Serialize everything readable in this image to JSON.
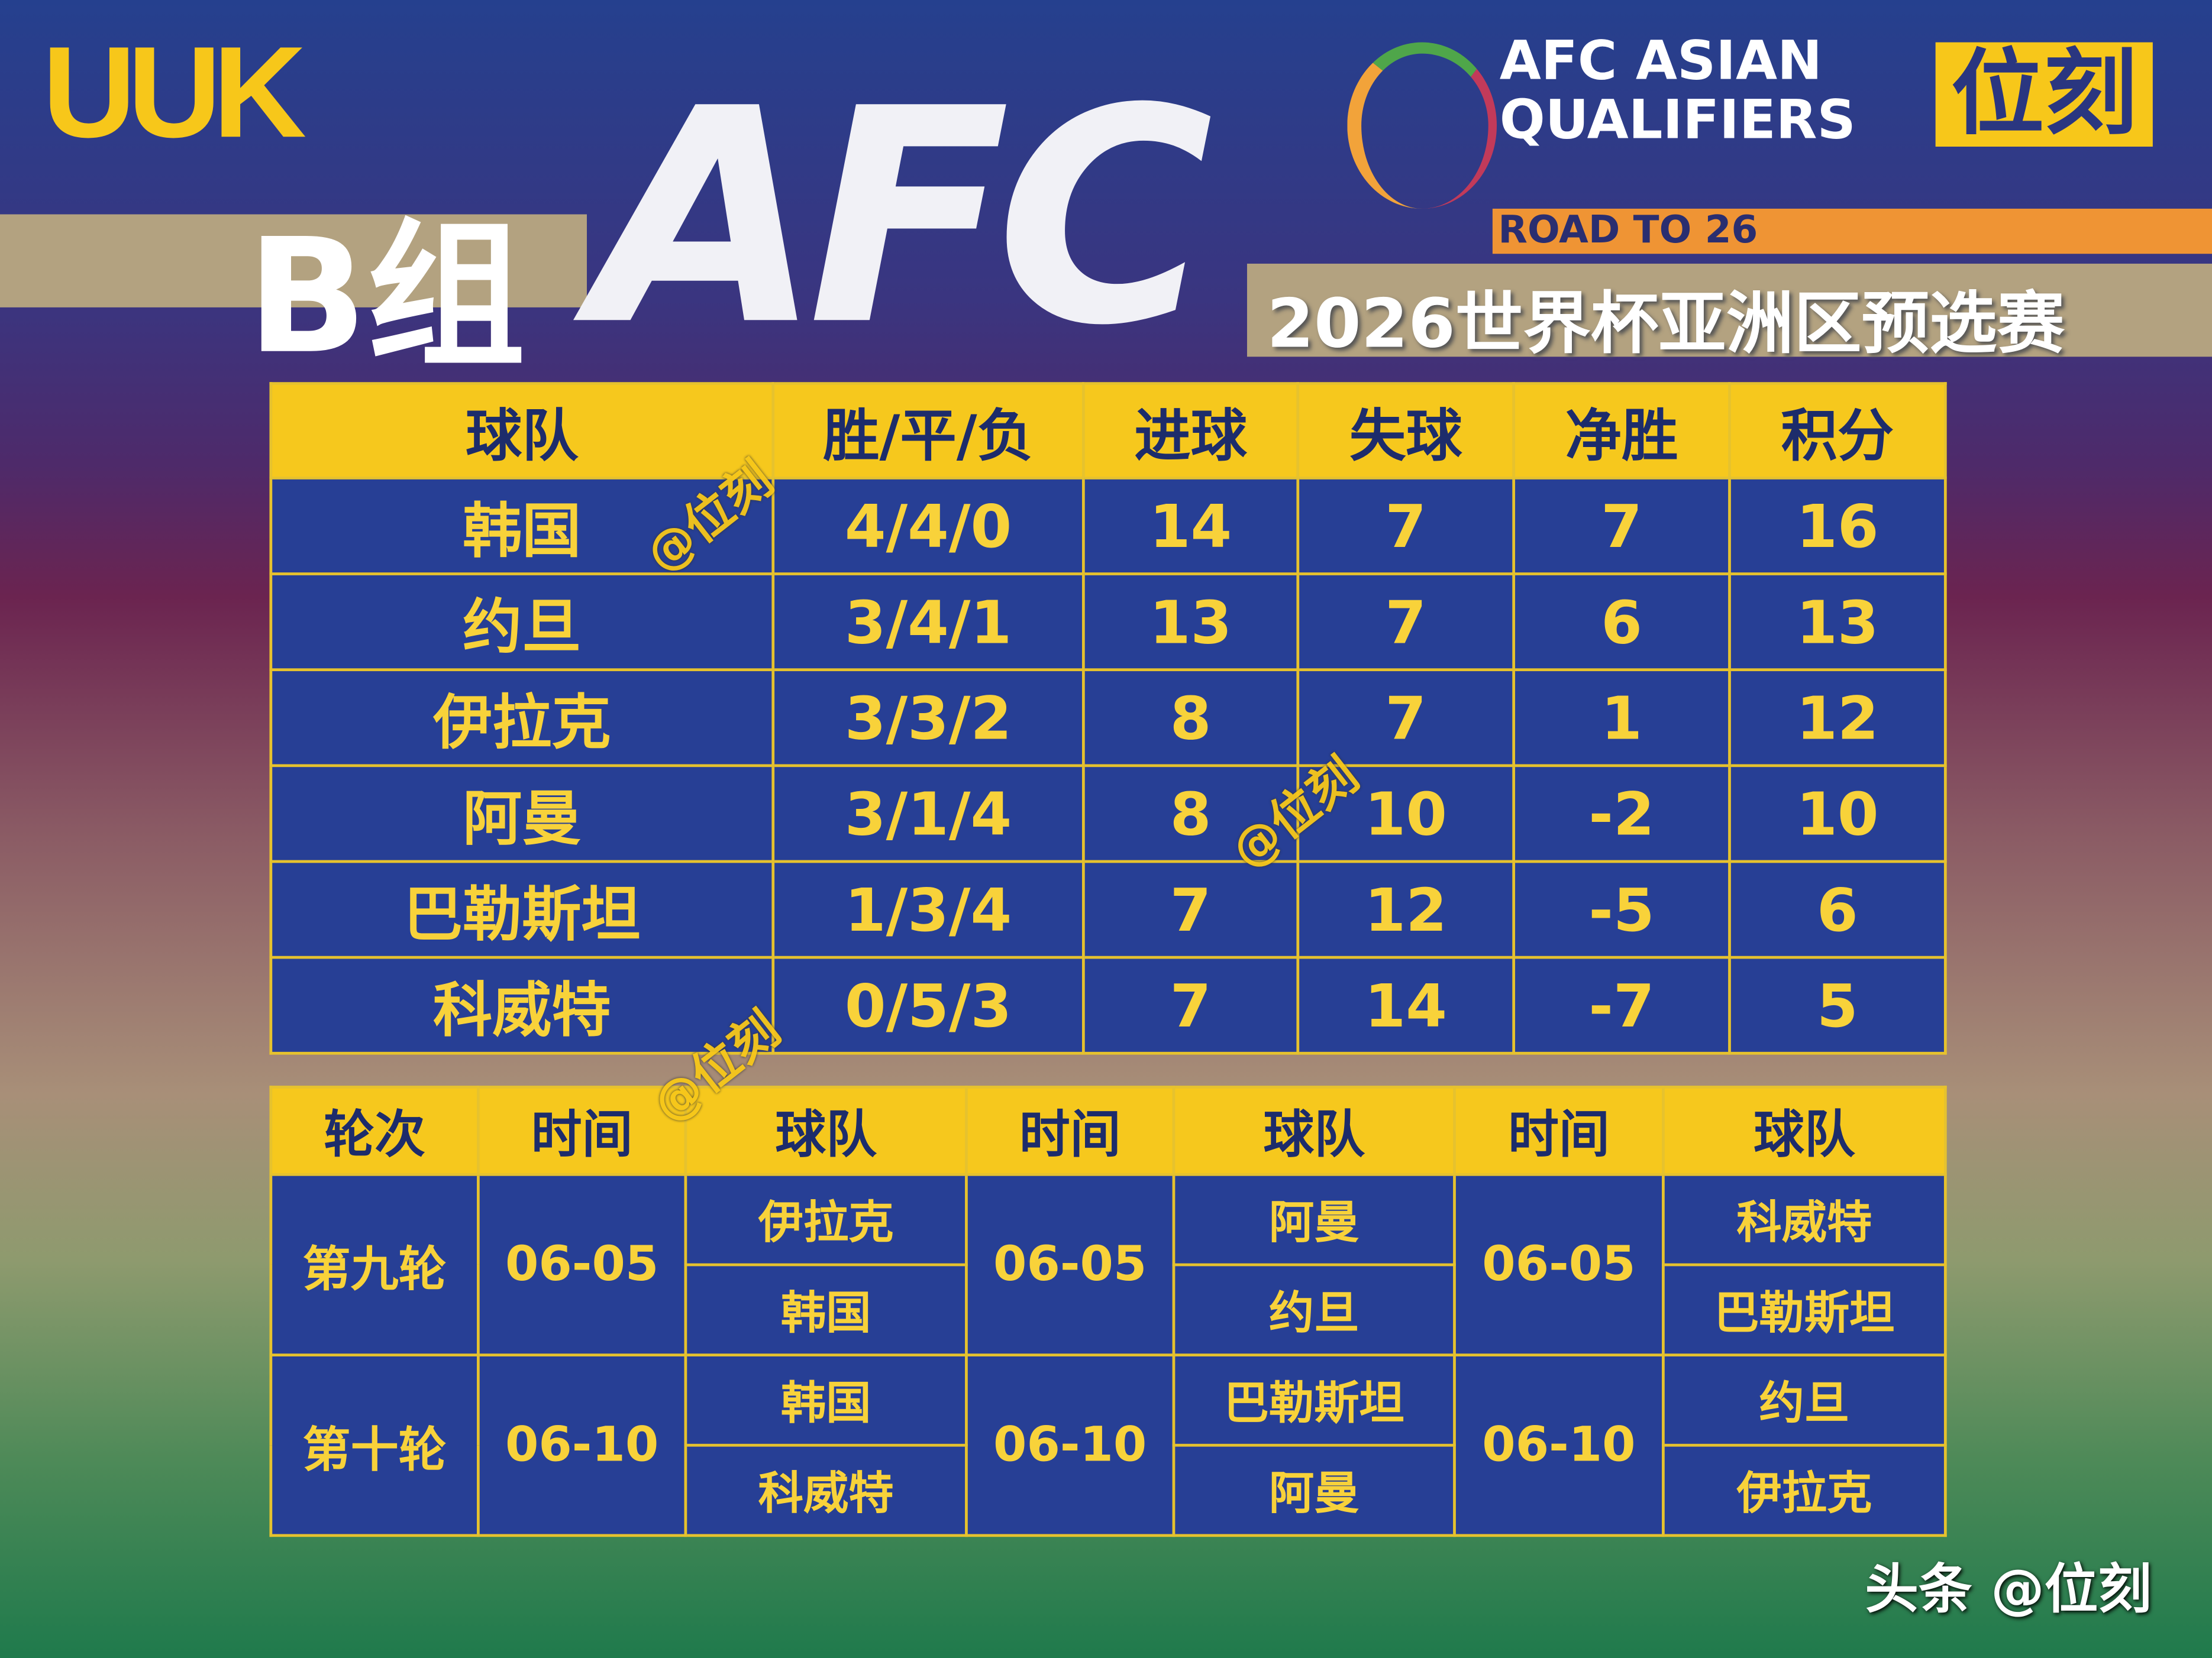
{
  "branding": {
    "left_logo": "UUK",
    "right_logo": "位刻",
    "afc_logo": "AFC",
    "qualifiers_logo": "AFC ASIAN QUALIFIERS",
    "road": "ROAD TO 26",
    "footer": "头条 @位刻",
    "watermark": "@位刻"
  },
  "header": {
    "group": "B组",
    "title": "2026世界杯亚洲区预选赛"
  },
  "colors": {
    "header_yellow": "#f6c81d",
    "cell_blue": "#273f95",
    "text_yellow": "#f8d23a",
    "orange": "#ef9434",
    "tan": "#b3a280"
  },
  "standings": {
    "columns": [
      "球队",
      "胜/平/负",
      "进球",
      "失球",
      "净胜",
      "积分"
    ],
    "rows": [
      [
        "韩国",
        "4/4/0",
        "14",
        "7",
        "7",
        "16"
      ],
      [
        "约旦",
        "3/4/1",
        "13",
        "7",
        "6",
        "13"
      ],
      [
        "伊拉克",
        "3/3/2",
        "8",
        "7",
        "1",
        "12"
      ],
      [
        "阿曼",
        "3/1/4",
        "8",
        "10",
        "-2",
        "10"
      ],
      [
        "巴勒斯坦",
        "1/3/4",
        "7",
        "12",
        "-5",
        "6"
      ],
      [
        "科威特",
        "0/5/3",
        "7",
        "14",
        "-7",
        "5"
      ]
    ]
  },
  "fixtures": {
    "columns": [
      "轮次",
      "时间",
      "球队",
      "时间",
      "球队",
      "时间",
      "球队"
    ],
    "rounds": [
      {
        "round": "第九轮",
        "matches": [
          {
            "date": "06-05",
            "home": "伊拉克",
            "away": "韩国"
          },
          {
            "date": "06-05",
            "home": "阿曼",
            "away": "约旦"
          },
          {
            "date": "06-05",
            "home": "科威特",
            "away": "巴勒斯坦"
          }
        ]
      },
      {
        "round": "第十轮",
        "matches": [
          {
            "date": "06-10",
            "home": "韩国",
            "away": "科威特"
          },
          {
            "date": "06-10",
            "home": "巴勒斯坦",
            "away": "阿曼"
          },
          {
            "date": "06-10",
            "home": "约旦",
            "away": "伊拉克"
          }
        ]
      }
    ]
  }
}
